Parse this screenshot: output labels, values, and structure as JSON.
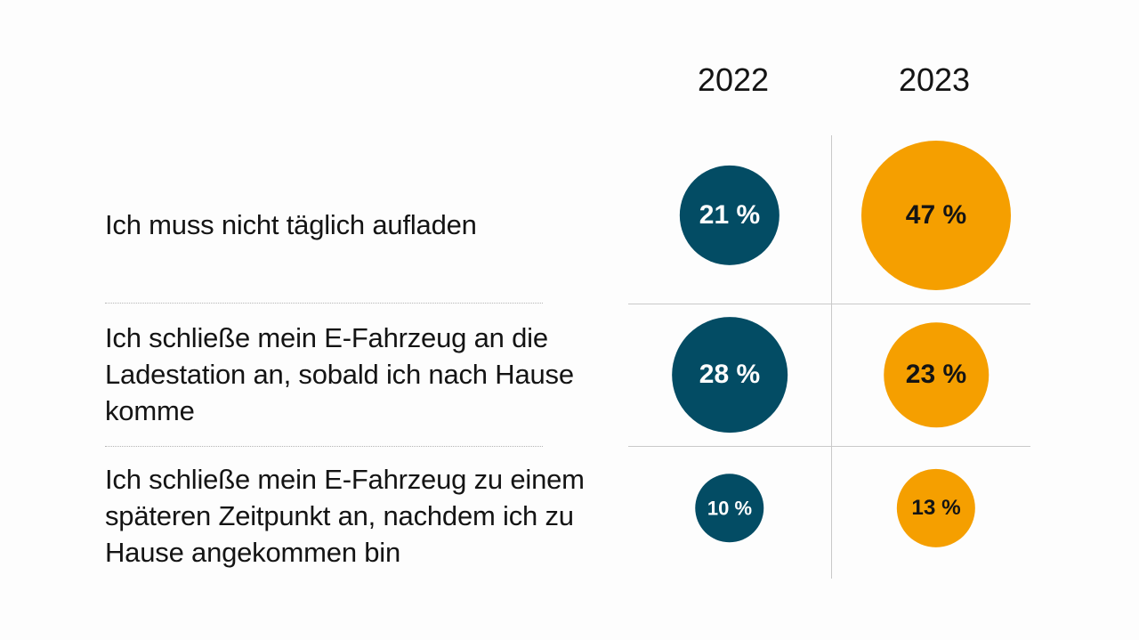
{
  "chart_data": {
    "type": "bubble-table",
    "columns": [
      "2022",
      "2023"
    ],
    "rows": [
      "Ich muss nicht täglich aufladen",
      "Ich schließe mein E-Fahrzeug an die Ladestation an, sobald ich nach Hause komme",
      "Ich schließe mein E-Fahrzeug zu einem späteren Zeitpunkt an, nachdem ich zu Hause angekommen bin"
    ],
    "unit": "%",
    "series": [
      {
        "column": "2022",
        "color": "#034c64",
        "text_color": "#ffffff",
        "values": [
          21,
          28,
          10
        ],
        "labels": [
          "21 %",
          "28 %",
          "10 %"
        ]
      },
      {
        "column": "2023",
        "color": "#f59f00",
        "text_color": "#141414",
        "values": [
          47,
          23,
          13
        ],
        "labels": [
          "47 %",
          "23 %",
          "13 %"
        ]
      }
    ]
  }
}
